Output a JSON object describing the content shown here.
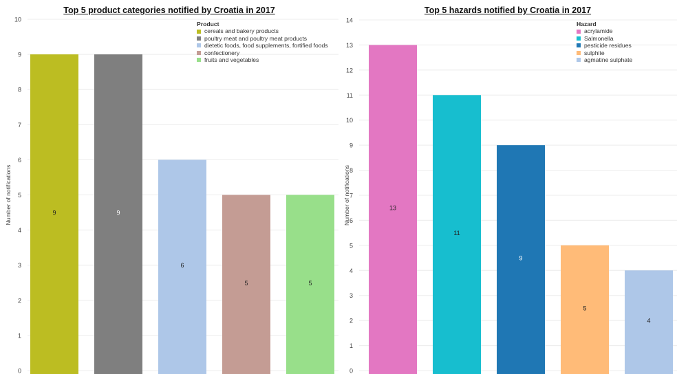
{
  "chart_data": [
    {
      "type": "bar",
      "title": "Top 5 product categories notified by Croatia in 2017",
      "ylabel": "Number of notifications",
      "xlabel": "",
      "ylim": [
        0,
        10
      ],
      "yticks": [
        0,
        1,
        2,
        3,
        4,
        5,
        6,
        7,
        8,
        9,
        10
      ],
      "grid": true,
      "legend_title": "Product",
      "legend_position": "top-right",
      "categories": [
        "cereals and bakery products",
        "poultry meat and poultry meat products",
        "dietetic foods, food supplements, fortified foods",
        "confectionery",
        "fruits and vegetables"
      ],
      "values": [
        9,
        9,
        6,
        5,
        5
      ],
      "colors": [
        "#bcbd22",
        "#7f7f7f",
        "#aec7e8",
        "#c49c94",
        "#98df8a"
      ],
      "label_colors": [
        "#222222",
        "#ffffff",
        "#222222",
        "#222222",
        "#222222"
      ]
    },
    {
      "type": "bar",
      "title": "Top 5 hazards notified by Croatia in 2017",
      "ylabel": "Number of notifications",
      "xlabel": "",
      "ylim": [
        0,
        14
      ],
      "yticks": [
        0,
        1,
        2,
        3,
        4,
        5,
        6,
        7,
        8,
        9,
        10,
        11,
        12,
        13,
        14
      ],
      "grid": true,
      "legend_title": "Hazard",
      "legend_position": "top-right",
      "categories": [
        "acrylamide",
        "Salmonella",
        "pesticide residues",
        "sulphite",
        "agmatine sulphate"
      ],
      "values": [
        13,
        11,
        9,
        5,
        4
      ],
      "colors": [
        "#e377c2",
        "#17becf",
        "#1f77b4",
        "#ffbb78",
        "#aec7e8"
      ],
      "label_colors": [
        "#222222",
        "#222222",
        "#ffffff",
        "#222222",
        "#222222"
      ]
    }
  ]
}
